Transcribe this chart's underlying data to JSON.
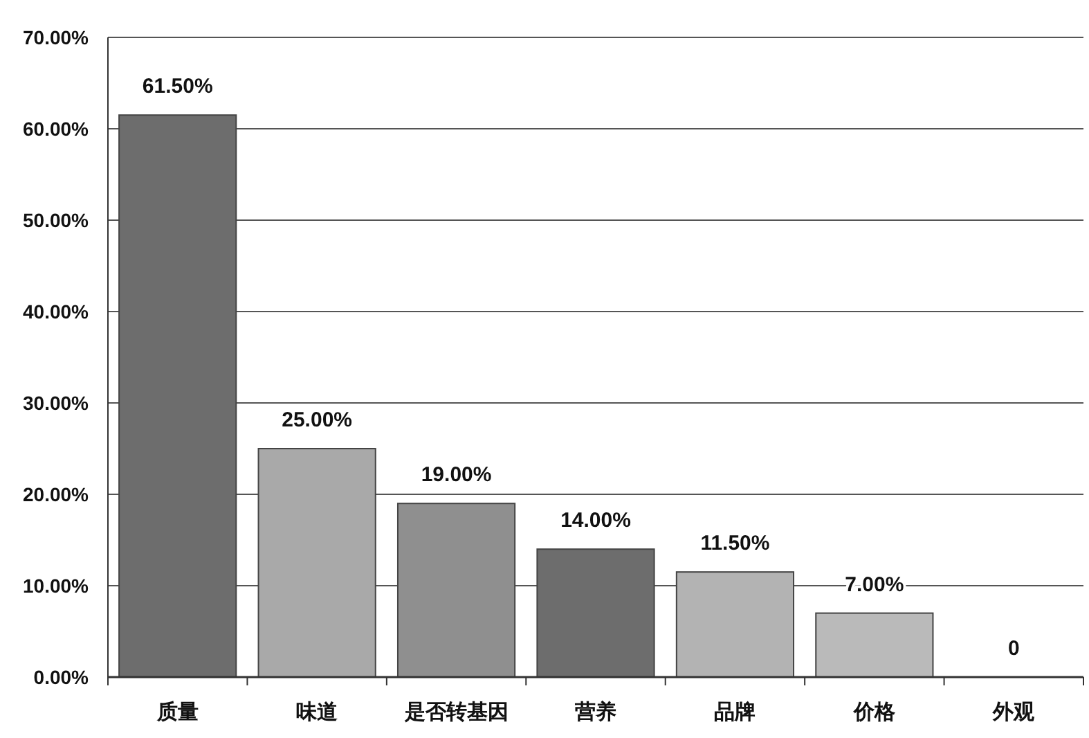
{
  "chart_data": {
    "type": "bar",
    "categories": [
      "质量",
      "味道",
      "是否转基因",
      "营养",
      "品牌",
      "价格",
      "外观"
    ],
    "values": [
      61.5,
      25,
      19,
      14,
      11.5,
      7,
      0
    ],
    "colors": [
      "#6d6d6d",
      "#a9a9a9",
      "#8f8f8f",
      "#6d6d6d",
      "#b3b3b3",
      "#bababa",
      "#bababa"
    ],
    "value_labels": [
      "61.50%",
      "25.00%",
      "19.00%",
      "14.00%",
      "11.50%",
      "7.00%",
      "0"
    ],
    "ylim": [
      0,
      70
    ],
    "yticks": [
      {
        "value": 0,
        "label": "0.00%"
      },
      {
        "value": 10,
        "label": "10.00%"
      },
      {
        "value": 20,
        "label": "20.00%"
      },
      {
        "value": 30,
        "label": "30.00%"
      },
      {
        "value": 40,
        "label": "40.00%"
      },
      {
        "value": 50,
        "label": "50.00%"
      },
      {
        "value": 60,
        "label": "60.00%"
      },
      {
        "value": 70,
        "label": "70.00%"
      }
    ],
    "grid": "y"
  }
}
